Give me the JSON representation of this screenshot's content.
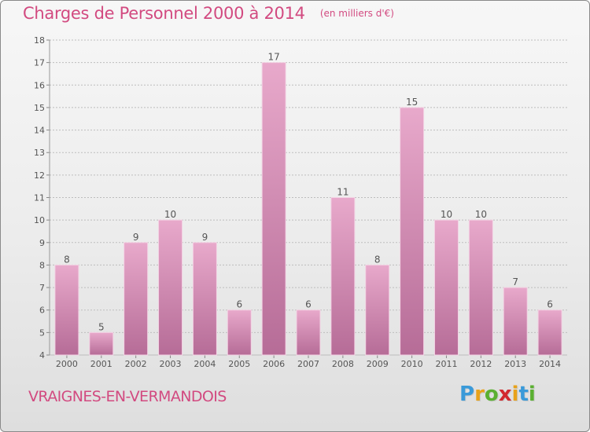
{
  "header": {
    "title": "Charges de Personnel 2000 à 2014",
    "subtitle": "(en milliers d'€)"
  },
  "commune": "VRAIGNES-EN-VERMANDOIS",
  "logo": {
    "letters": [
      "P",
      "r",
      "o",
      "x",
      "i",
      "t",
      "i"
    ],
    "colors": [
      "#3a9ad9",
      "#e8a21a",
      "#5ab031",
      "#d2282e",
      "#e8a21a",
      "#3a9ad9",
      "#5ab031"
    ]
  },
  "colors": {
    "title": "#d24a80",
    "bar_light": "#e8a9cb",
    "bar_dark": "#b66c97",
    "grid": "#bdbdbd",
    "label": "#555555"
  },
  "chart_data": {
    "type": "bar",
    "categories": [
      "2000",
      "2001",
      "2002",
      "2003",
      "2004",
      "2005",
      "2006",
      "2007",
      "2008",
      "2009",
      "2010",
      "2011",
      "2012",
      "2013",
      "2014"
    ],
    "values": [
      8,
      5,
      9,
      10,
      9,
      6,
      17,
      6,
      11,
      8,
      15,
      10,
      10,
      7,
      6
    ],
    "title": "Charges de Personnel 2000 à 2014",
    "ylim": [
      4,
      18
    ],
    "yticks": [
      4,
      5,
      6,
      7,
      8,
      9,
      10,
      11,
      12,
      13,
      14,
      15,
      16,
      17,
      18
    ],
    "grid": true,
    "data_labels": true
  }
}
